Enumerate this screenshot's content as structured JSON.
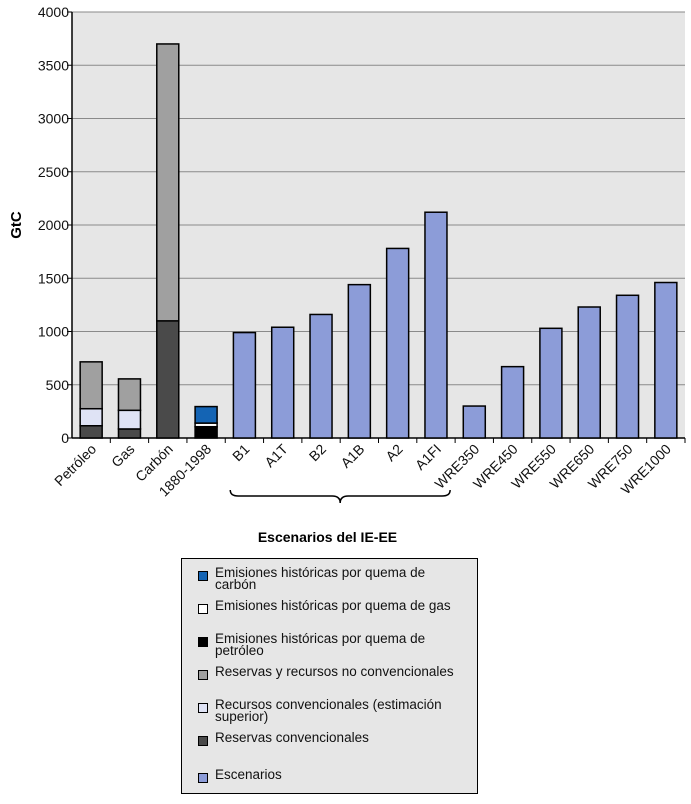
{
  "chart_data": {
    "type": "bar",
    "ylabel": "GtC",
    "ylim": [
      0,
      4000
    ],
    "yticks": [
      "0",
      "500",
      "1000",
      "1500",
      "2000",
      "2500",
      "3000",
      "3500",
      "4000"
    ],
    "grid": true,
    "categories": [
      "Petróleo",
      "Gas",
      "Carbón",
      "1880-1998",
      "B1",
      "A1T",
      "B2",
      "A1B",
      "A2",
      "A1FI",
      "WRE350",
      "WRE450",
      "WRE550",
      "WRE650",
      "WRE750",
      "WRE1000"
    ],
    "group_label": "Escenarios del IE-EE",
    "series": [
      {
        "name": "Reservas convencionales",
        "color": "#4a4a4a",
        "values": [
          115,
          85,
          1100,
          0,
          0,
          0,
          0,
          0,
          0,
          0,
          0,
          0,
          0,
          0,
          0,
          0
        ]
      },
      {
        "name": "Recursos convencionales (estimación superior)",
        "color": "#dfe3f5",
        "values": [
          160,
          175,
          0,
          0,
          0,
          0,
          0,
          0,
          0,
          0,
          0,
          0,
          0,
          0,
          0,
          0
        ]
      },
      {
        "name": "Reservas y recursos no convencionales",
        "color": "#a0a0a0",
        "values": [
          440,
          295,
          2600,
          0,
          0,
          0,
          0,
          0,
          0,
          0,
          0,
          0,
          0,
          0,
          0,
          0
        ]
      },
      {
        "name": "Emisiones históricas por quema de petróleo",
        "color": "#000000",
        "values": [
          0,
          0,
          0,
          106,
          0,
          0,
          0,
          0,
          0,
          0,
          0,
          0,
          0,
          0,
          0,
          0
        ]
      },
      {
        "name": "Emisiones históricas por quema de gas",
        "color": "#ffffff",
        "values": [
          0,
          0,
          0,
          34,
          0,
          0,
          0,
          0,
          0,
          0,
          0,
          0,
          0,
          0,
          0,
          0
        ]
      },
      {
        "name": "Emisiones históricas por quema de carbón",
        "color": "#1464b4",
        "values": [
          0,
          0,
          0,
          155,
          0,
          0,
          0,
          0,
          0,
          0,
          0,
          0,
          0,
          0,
          0,
          0
        ]
      },
      {
        "name": "Escenarios",
        "color": "#8c9cd8",
        "values": [
          0,
          0,
          0,
          0,
          990,
          1040,
          1160,
          1440,
          1780,
          2120,
          300,
          670,
          1030,
          1230,
          1340,
          1460
        ]
      }
    ],
    "legend": {
      "placement": "bottom",
      "entries": [
        {
          "label": "Emisiones históricas por quema de carbón",
          "color": "#1464b4"
        },
        {
          "label": "Emisiones históricas por quema de gas",
          "color": "#ffffff"
        },
        {
          "label": "Emisiones históricas por quema de petróleo",
          "color": "#000000"
        },
        {
          "label": "Reservas y recursos no convencionales",
          "color": "#a0a0a0"
        },
        {
          "label": "Recursos convencionales (estimación superior)",
          "color": "#dfe3f5"
        },
        {
          "label": "Reservas convencionales",
          "color": "#4a4a4a"
        },
        {
          "label": "Escenarios",
          "color": "#8c9cd8"
        }
      ]
    }
  }
}
